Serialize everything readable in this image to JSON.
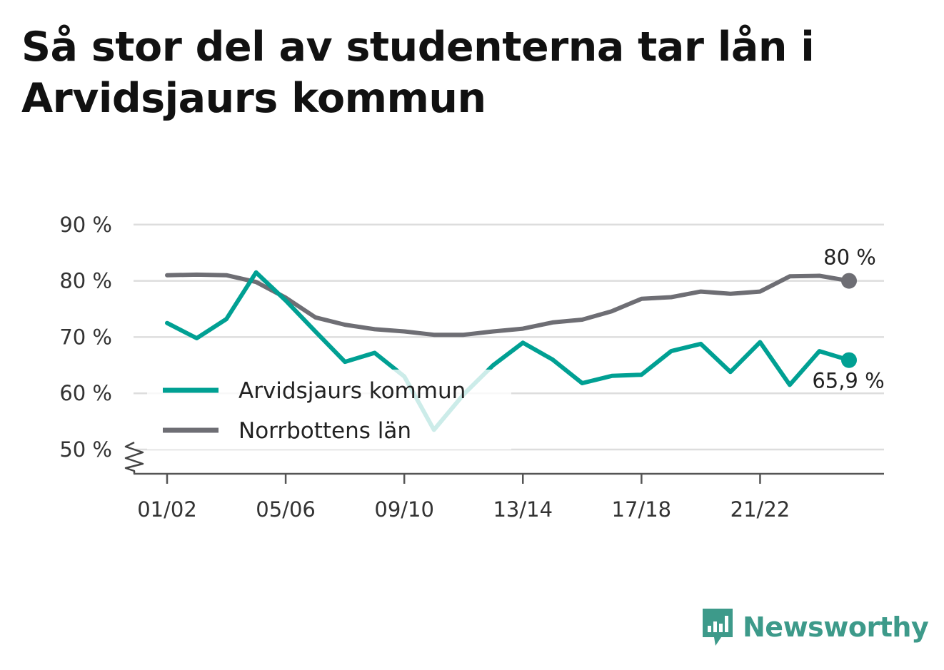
{
  "title": "Så stor del av studenterna tar lån i Arvidsjaurs kommun",
  "brand": {
    "name": "Newsworthy",
    "icon": "newsworthy-logo-icon"
  },
  "colors": {
    "arvidsjaur": "#00a093",
    "norrbotten": "#6e6e74",
    "grid": "#dddddd",
    "axis": "#555555",
    "brand": "#3d9a8a"
  },
  "chart_data": {
    "type": "line",
    "title": "Så stor del av studenterna tar lån i Arvidsjaurs kommun",
    "xlabel": "",
    "ylabel": "",
    "x": [
      "01/02",
      "02/03",
      "03/04",
      "04/05",
      "05/06",
      "06/07",
      "07/08",
      "08/09",
      "09/10",
      "10/11",
      "11/12",
      "12/13",
      "13/14",
      "14/15",
      "15/16",
      "16/17",
      "17/18",
      "18/19",
      "19/20",
      "20/21",
      "21/22",
      "22/23",
      "23/24",
      "24/25"
    ],
    "x_tick_labels": [
      "01/02",
      "05/06",
      "09/10",
      "13/14",
      "17/18",
      "21/22"
    ],
    "y_ticks": [
      50,
      60,
      70,
      80,
      90
    ],
    "y_tick_labels": [
      "50 %",
      "60 %",
      "70 %",
      "80 %",
      "90 %"
    ],
    "ylim": [
      46,
      90
    ],
    "y_axis_break": true,
    "grid": "horizontal",
    "legend_position": "lower-left",
    "series": [
      {
        "name": "Arvidsjaurs kommun",
        "color": "#00a093",
        "values": [
          72.5,
          69.8,
          73.2,
          81.5,
          76.5,
          71.0,
          65.6,
          67.2,
          63.0,
          53.5,
          59.8,
          65.0,
          69.0,
          66.0,
          61.8,
          63.1,
          63.3,
          67.5,
          68.8,
          63.8,
          69.1,
          61.5,
          67.5,
          65.9
        ],
        "end_label": "65,9 %"
      },
      {
        "name": "Norrbottens län",
        "color": "#6e6e74",
        "values": [
          81.0,
          81.1,
          81.0,
          79.8,
          77.0,
          73.5,
          72.2,
          71.4,
          71.0,
          70.4,
          70.4,
          71.0,
          71.5,
          72.6,
          73.1,
          74.6,
          76.8,
          77.1,
          78.1,
          77.7,
          78.1,
          80.8,
          80.9,
          80.0
        ],
        "end_label": "80 %"
      }
    ]
  }
}
